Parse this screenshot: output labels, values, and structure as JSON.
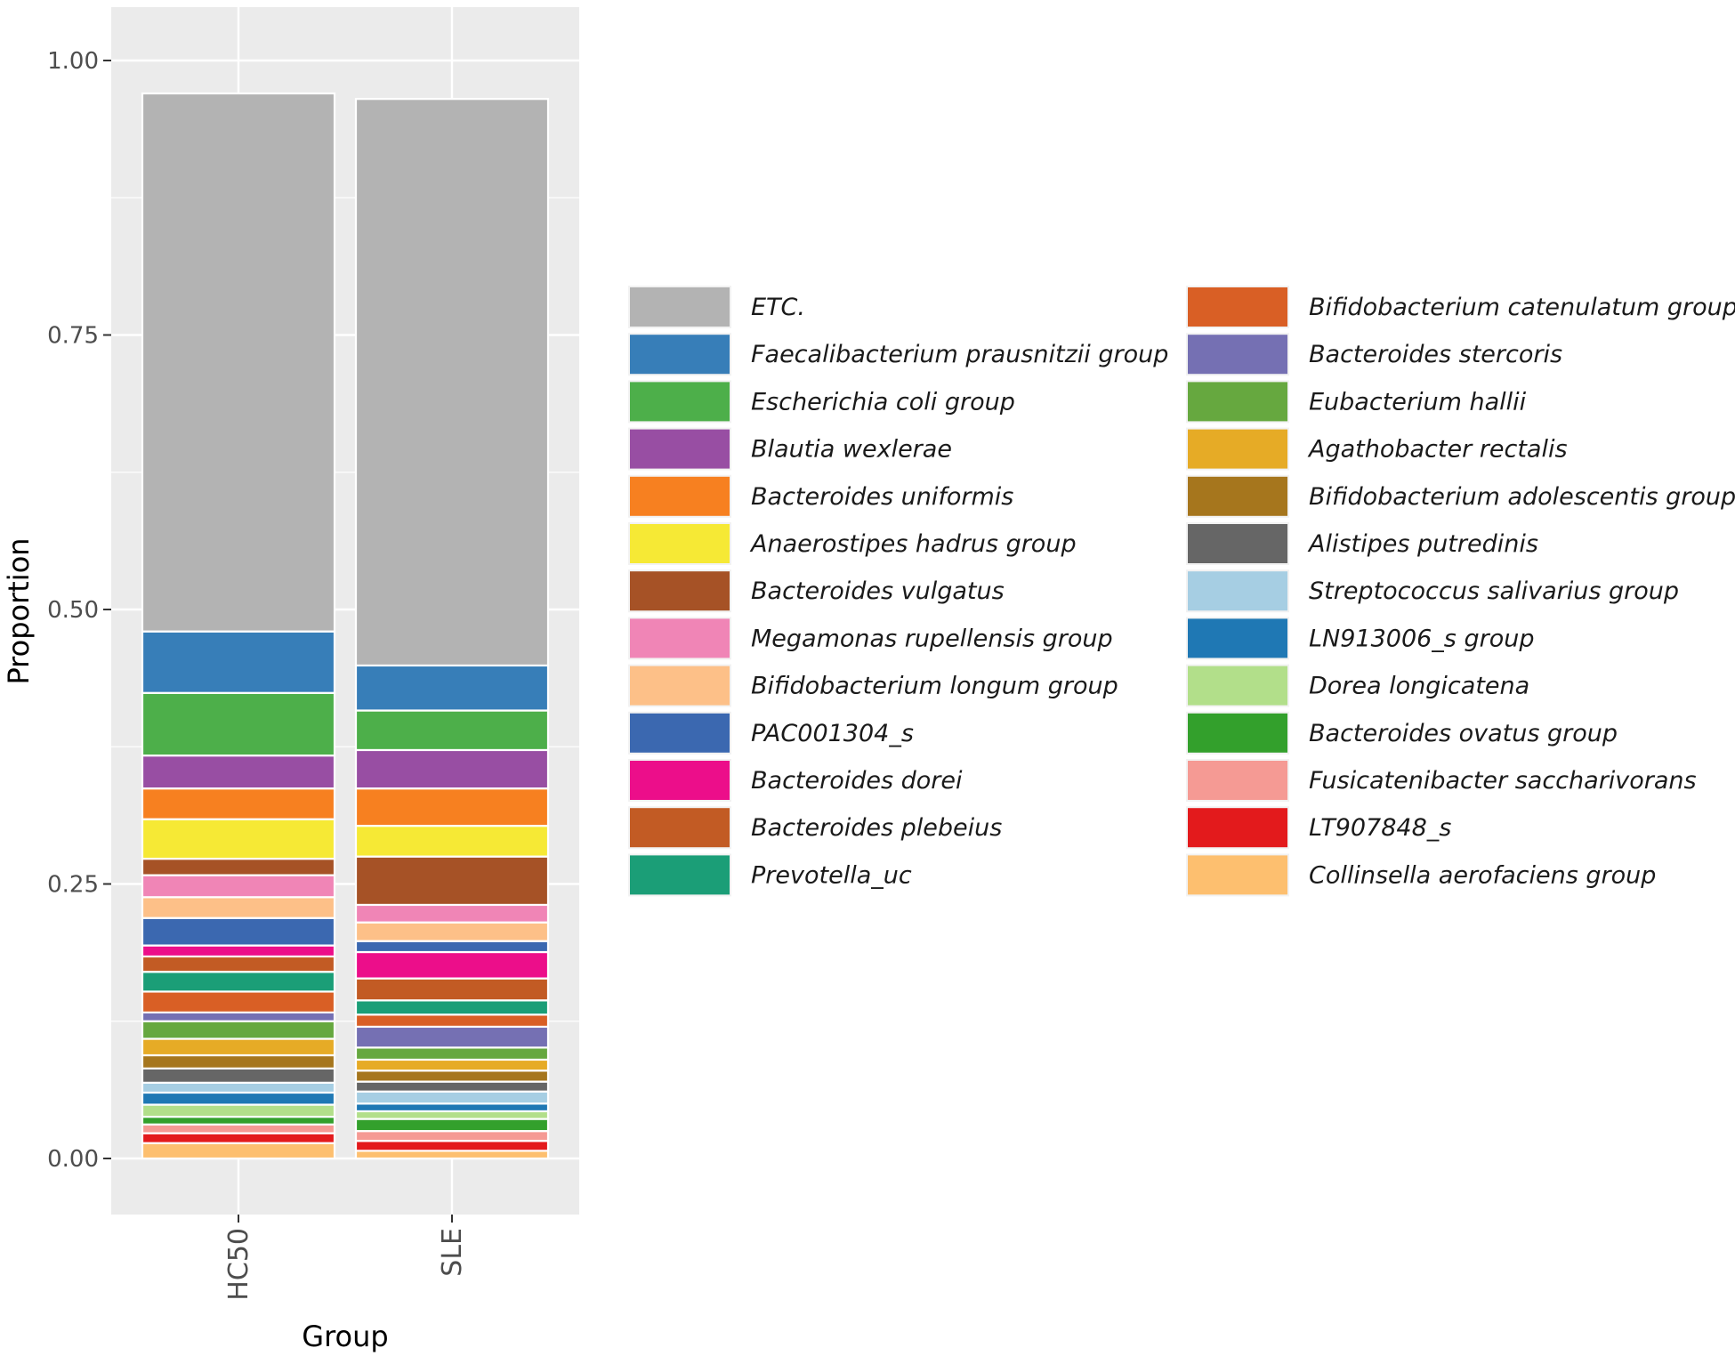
{
  "chart_data": {
    "type": "bar",
    "stacked": true,
    "xlabel": "Group",
    "ylabel": "Proportion",
    "categories": [
      "HC50",
      "SLE"
    ],
    "ylim": [
      0,
      1.0
    ],
    "yticks": [
      "0.00",
      "0.25",
      "0.50",
      "0.75",
      "1.00"
    ],
    "grid": true,
    "legend_position": "right",
    "series": [
      {
        "name": "Collinsella aerofaciens group",
        "color": "#FDBF6F",
        "values": [
          0.014,
          0.007
        ]
      },
      {
        "name": "LT907848_s",
        "color": "#E31A1C",
        "values": [
          0.009,
          0.009
        ]
      },
      {
        "name": "Fusicatenibacter saccharivorans",
        "color": "#F59A94",
        "values": [
          0.008,
          0.009
        ]
      },
      {
        "name": "Bacteroides ovatus group",
        "color": "#33A02C",
        "values": [
          0.007,
          0.011
        ]
      },
      {
        "name": "Dorea longicatena",
        "color": "#B2DF8A",
        "values": [
          0.011,
          0.007
        ]
      },
      {
        "name": "LN913006_s group",
        "color": "#1F78B4",
        "values": [
          0.011,
          0.007
        ]
      },
      {
        "name": "Streptococcus salivarius group",
        "color": "#A6CEE3",
        "values": [
          0.009,
          0.011
        ]
      },
      {
        "name": "Alistipes putredinis",
        "color": "#666666",
        "values": [
          0.013,
          0.009
        ]
      },
      {
        "name": "Bifidobacterium adolescentis group",
        "color": "#A6761D",
        "values": [
          0.012,
          0.01
        ]
      },
      {
        "name": "Agathobacter rectalis",
        "color": "#E6AB26",
        "values": [
          0.015,
          0.01
        ]
      },
      {
        "name": "Eubacterium hallii",
        "color": "#66A83F",
        "values": [
          0.016,
          0.011
        ]
      },
      {
        "name": "Bacteroides stercoris",
        "color": "#7570B3",
        "values": [
          0.008,
          0.019
        ]
      },
      {
        "name": "Bifidobacterium catenulatum group",
        "color": "#D95F25",
        "values": [
          0.019,
          0.011
        ]
      },
      {
        "name": "Prevotella_uc",
        "color": "#1B9E77",
        "values": [
          0.018,
          0.013
        ]
      },
      {
        "name": "Bacteroides plebeius",
        "color": "#C25B24",
        "values": [
          0.014,
          0.02
        ]
      },
      {
        "name": "Bacteroides dorei",
        "color": "#EC0E8A",
        "values": [
          0.01,
          0.024
        ]
      },
      {
        "name": "PAC001304_s",
        "color": "#3B68B0",
        "values": [
          0.025,
          0.01
        ]
      },
      {
        "name": "Bifidobacterium longum group",
        "color": "#FDC088",
        "values": [
          0.019,
          0.017
        ]
      },
      {
        "name": "Megamonas rupellensis group",
        "color": "#F085B6",
        "values": [
          0.02,
          0.016
        ]
      },
      {
        "name": "Bacteroides vulgatus",
        "color": "#A65226",
        "values": [
          0.015,
          0.044
        ]
      },
      {
        "name": "Anaerostipes hadrus group",
        "color": "#F6E935",
        "values": [
          0.036,
          0.028
        ]
      },
      {
        "name": "Bacteroides uniformis",
        "color": "#F78020",
        "values": [
          0.028,
          0.034
        ]
      },
      {
        "name": "Blautia wexlerae",
        "color": "#984EA3",
        "values": [
          0.03,
          0.035
        ]
      },
      {
        "name": "Escherichia coli group",
        "color": "#4DAF4A",
        "values": [
          0.057,
          0.036
        ]
      },
      {
        "name": "Faecalibacterium prausnitzii group",
        "color": "#377EB8",
        "values": [
          0.056,
          0.041
        ]
      },
      {
        "name": "ETC.",
        "color": "#B3B3B3",
        "values": [
          0.49,
          0.516
        ]
      }
    ],
    "legend_order": [
      "ETC.",
      "Faecalibacterium prausnitzii group",
      "Escherichia coli group",
      "Blautia wexlerae",
      "Bacteroides uniformis",
      "Anaerostipes hadrus group",
      "Bacteroides vulgatus",
      "Megamonas rupellensis group",
      "Bifidobacterium longum group",
      "PAC001304_s",
      "Bacteroides dorei",
      "Bacteroides plebeius",
      "Prevotella_uc",
      "Bifidobacterium catenulatum group",
      "Bacteroides stercoris",
      "Eubacterium hallii",
      "Agathobacter rectalis",
      "Bifidobacterium adolescentis group",
      "Alistipes putredinis",
      "Streptococcus salivarius group",
      "LN913006_s group",
      "Dorea longicatena",
      "Bacteroides ovatus group",
      "Fusicatenibacter saccharivorans",
      "LT907848_s",
      "Collinsella aerofaciens group"
    ]
  }
}
